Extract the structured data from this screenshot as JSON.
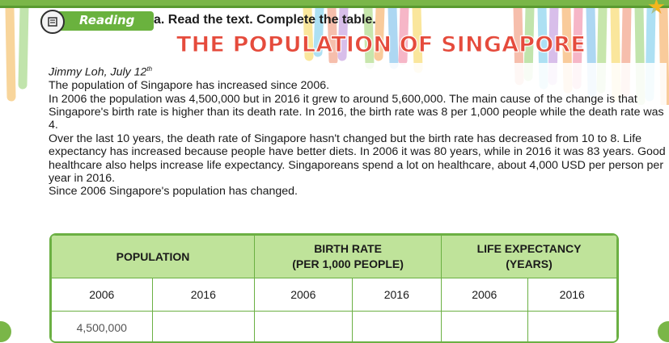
{
  "header": {
    "reading_label": "Reading",
    "task_text": "a. Read the text. Complete the table.",
    "title": "THE POPULATION OF SINGAPORE"
  },
  "article": {
    "byline": "Jimmy Loh, July 12",
    "byline_sup": "th",
    "paragraphs": [
      "The population of Singapore has increased since 2006.",
      "In 2006 the population was 4,500,000 but in 2016 it grew to around 5,600,000. The main cause of the change is that Singapore's birth rate is higher than its death rate. In 2016, the birth rate was 8 per 1,000 people while the death rate was 4.",
      "Over the last 10 years, the death rate of Singapore hasn't changed but the birth rate has decreased from 10 to 8. Life expectancy has increased because people have better diets. In 2006 it was 80 years, while in 2016 it was 83 years. Good healthcare also helps increase life expectancy. Singaporeans spend a lot on healthcare, about 4,000 USD per person per year in 2016.",
      "Since 2006 Singapore's population has changed."
    ]
  },
  "table": {
    "headers": [
      "POPULATION",
      "BIRTH RATE\n(PER 1,000 PEOPLE)",
      "LIFE EXPECTANCY\n(YEARS)"
    ],
    "header_lines": [
      [
        "POPULATION"
      ],
      [
        "BIRTH RATE",
        "(PER 1,000 PEOPLE)"
      ],
      [
        "LIFE EXPECTANCY",
        "(YEARS)"
      ]
    ],
    "years": [
      "2006",
      "2016",
      "2006",
      "2016",
      "2006",
      "2016"
    ],
    "row": [
      "4,500,000",
      "",
      "",
      "",
      "",
      ""
    ]
  },
  "colors": {
    "accent_green": "#6bb043",
    "header_fill": "#bfe39a",
    "title_red": "#e54b3c",
    "star_yellow": "#f3b61d"
  },
  "icons": [
    "book-icon",
    "star-icon"
  ]
}
